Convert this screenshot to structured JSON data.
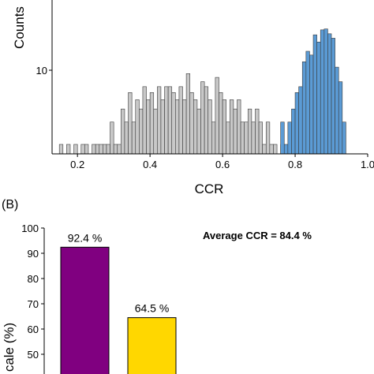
{
  "chart_data": [
    {
      "type": "histogram",
      "panel_label": "",
      "title": "",
      "xlabel": "CCR",
      "ylabel": "Counts",
      "xlim": [
        0.13,
        1.0
      ],
      "ylim": [
        0,
        14
      ],
      "xticks": [
        0.2,
        0.4,
        0.6,
        0.8,
        1.0
      ],
      "xtick_labels": [
        "0.2",
        "0.4",
        "0.6",
        "0.8",
        "1.0"
      ],
      "yticks": [
        10
      ],
      "ytick_labels": [
        "10"
      ],
      "y_scale": "log",
      "bin_width": 0.01,
      "series": [
        {
          "color": "#c8c8c8",
          "x": [
            0.15,
            0.17,
            0.19,
            0.21,
            0.22,
            0.24,
            0.25,
            0.26,
            0.27,
            0.28,
            0.29,
            0.3,
            0.31,
            0.32,
            0.33,
            0.34,
            0.35,
            0.36,
            0.37,
            0.38,
            0.39,
            0.4,
            0.41,
            0.42,
            0.43,
            0.44,
            0.45,
            0.46,
            0.47,
            0.48,
            0.49,
            0.5,
            0.51,
            0.52,
            0.53,
            0.54,
            0.55,
            0.56,
            0.57,
            0.58,
            0.59,
            0.6,
            0.61,
            0.62,
            0.63,
            0.64,
            0.65,
            0.66,
            0.67,
            0.68,
            0.69,
            0.7,
            0.71,
            0.72,
            0.73,
            0.74,
            0.76,
            0.83
          ],
          "values": [
            1,
            1,
            1,
            1,
            1,
            1,
            1,
            1,
            1,
            1,
            2,
            1,
            1,
            3,
            2,
            5,
            2,
            4,
            3,
            6,
            4,
            5,
            3,
            6,
            4,
            6,
            6,
            5,
            4,
            6,
            4,
            9,
            5,
            4,
            3,
            7,
            6,
            4,
            2,
            8,
            5,
            4,
            2,
            4,
            3,
            4,
            2,
            2,
            3,
            2,
            3,
            2,
            1,
            2,
            1,
            1,
            1,
            1
          ]
        },
        {
          "color": "#5b9bd5",
          "x": [
            0.76,
            0.77,
            0.78,
            0.79,
            0.8,
            0.81,
            0.82,
            0.83,
            0.84,
            0.85,
            0.86,
            0.87,
            0.88,
            0.89,
            0.9,
            0.91,
            0.92,
            0.93
          ],
          "values": [
            2,
            1,
            2,
            3,
            5,
            6,
            13,
            18,
            16,
            30,
            24,
            35,
            36,
            31,
            27,
            11,
            7,
            2
          ]
        }
      ]
    },
    {
      "type": "bar",
      "panel_label": "(B)",
      "title": "",
      "ylabel": "Scale (%)",
      "ylabel_visible": "cale (%)",
      "ylim": [
        0,
        100
      ],
      "yticks": [
        50,
        60,
        70,
        80,
        90,
        100
      ],
      "ytick_labels": [
        "50",
        "60",
        "70",
        "80",
        "90",
        "100"
      ],
      "annotation": "Average CCR = 84.4 %",
      "categories": [
        "",
        ""
      ],
      "values": [
        92.4,
        64.5
      ],
      "value_labels": [
        "92.4 %",
        "64.5 %"
      ],
      "colors": [
        "#800080",
        "#ffd700"
      ]
    }
  ]
}
